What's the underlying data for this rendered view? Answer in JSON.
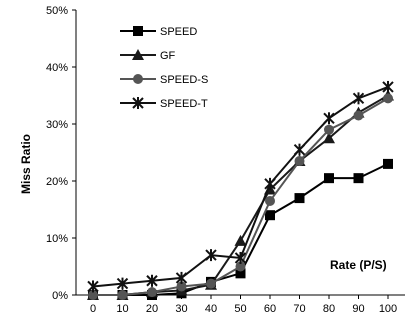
{
  "chart_data": {
    "type": "line",
    "title": "",
    "ylabel": "Miss Ratio",
    "xlabel": "Rate (P/S)",
    "x": [
      0,
      10,
      20,
      30,
      40,
      50,
      60,
      70,
      80,
      90,
      100
    ],
    "x_tick_labels": [
      "0",
      "10",
      "20",
      "30",
      "40",
      "50",
      "60",
      "70",
      "80",
      "90",
      "100"
    ],
    "ylim": [
      0,
      50
    ],
    "y_ticks": [
      0,
      10,
      20,
      30,
      40,
      50
    ],
    "y_tick_labels": [
      "0%",
      "10%",
      "20%",
      "30%",
      "40%",
      "50%"
    ],
    "grid": false,
    "legend_position": "top-left",
    "series": [
      {
        "name": "SPEED",
        "marker": "square",
        "color": "#000000",
        "values": [
          0.0,
          0.0,
          0.0,
          0.3,
          2.3,
          3.8,
          14.0,
          17.0,
          20.5,
          20.5,
          23.0
        ]
      },
      {
        "name": "GF",
        "marker": "triangle",
        "color": "#1a1a1a",
        "values": [
          0.0,
          0.0,
          0.5,
          0.8,
          1.8,
          9.5,
          18.5,
          23.5,
          27.5,
          32.0,
          35.0
        ]
      },
      {
        "name": "SPEED-S",
        "marker": "circle",
        "color": "#555555",
        "values": [
          0.0,
          0.0,
          0.5,
          1.5,
          2.0,
          5.0,
          16.5,
          23.5,
          29.0,
          31.5,
          34.5
        ]
      },
      {
        "name": "SPEED-T",
        "marker": "star",
        "color": "#111111",
        "values": [
          1.5,
          2.0,
          2.5,
          3.0,
          7.0,
          6.5,
          19.5,
          25.5,
          31.0,
          34.5,
          36.5
        ]
      }
    ]
  }
}
